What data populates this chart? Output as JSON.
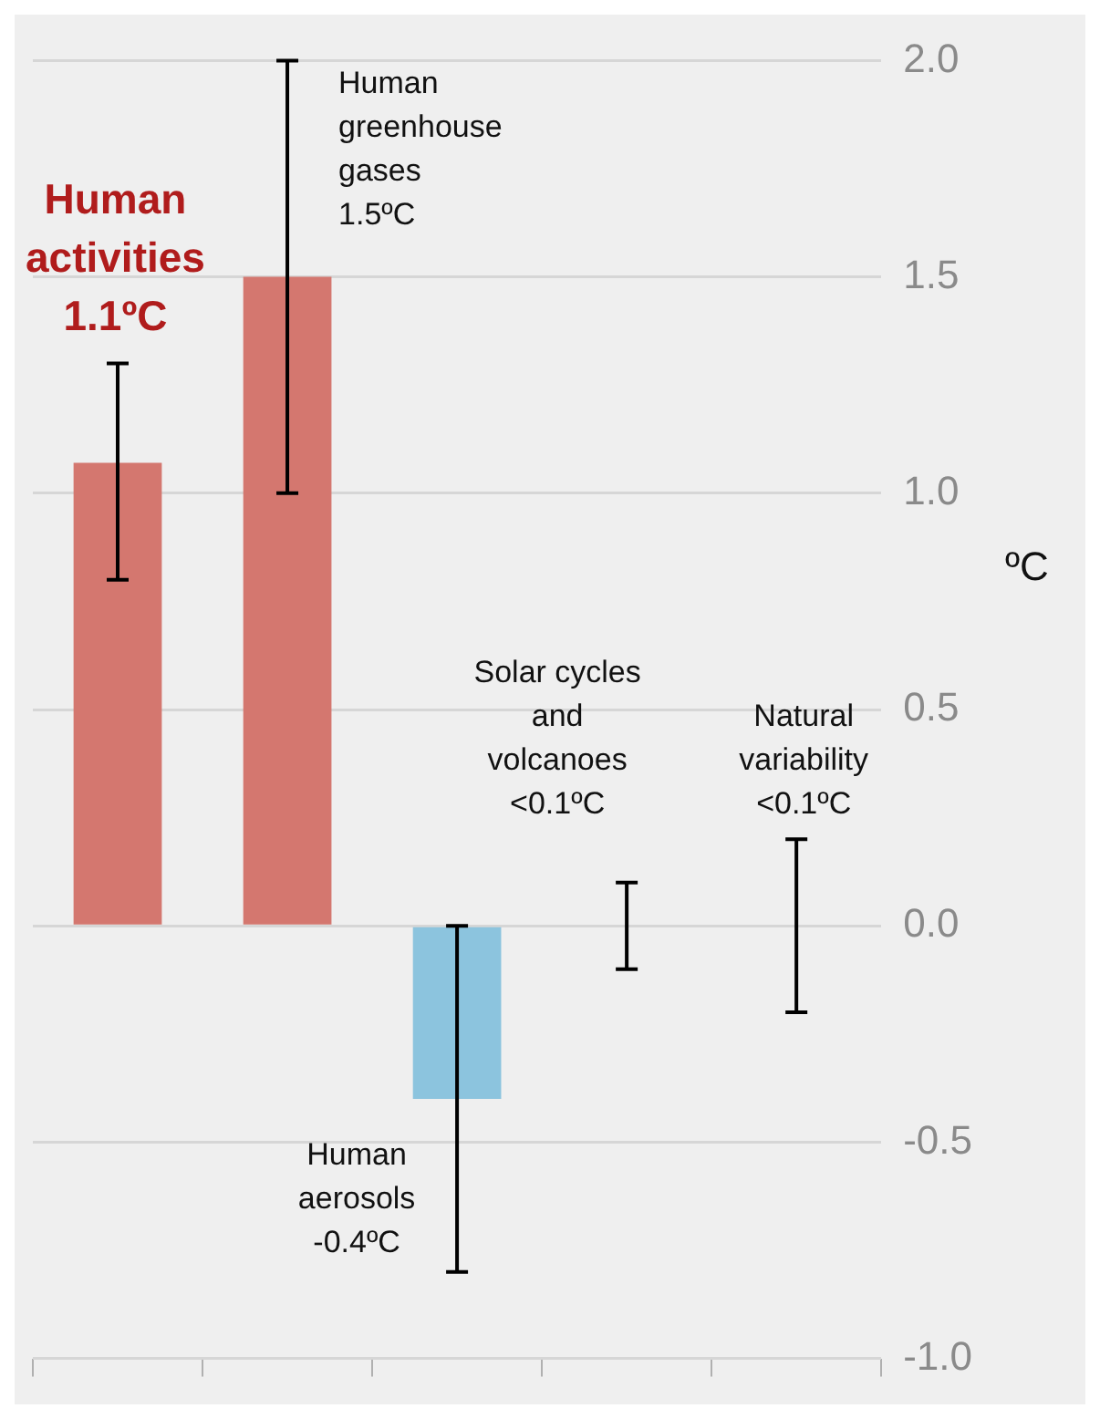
{
  "chart_data": {
    "type": "bar",
    "ylabel": "ºC",
    "categories": [
      null,
      null,
      null,
      null,
      null
    ],
    "values": [
      1.07,
      1.5,
      -0.4,
      0,
      0
    ],
    "colors": [
      "#d4776f",
      "#d4776f",
      "#8cc4de",
      "#aaaaaa",
      "#aaaaaa"
    ],
    "errors": [
      [
        0.8,
        1.3
      ],
      [
        1.0,
        2.0
      ],
      [
        -0.8,
        0.0
      ],
      [
        -0.1,
        0.1
      ],
      [
        -0.2,
        0.2
      ]
    ],
    "annotations": [
      "Human\nactivities\n1.1ºC",
      "Human\ngreenhouse\ngases\n1.5ºC",
      "Human\naerosols\n-0.4ºC",
      "Solar cycles\nand\nvolcanoes\n<0.1ºC",
      "Natural\nvariability\n<0.1ºC"
    ],
    "ylim": [
      -1,
      2
    ],
    "yticks": [
      {
        "value": -1,
        "label": "-1.0"
      },
      {
        "value": -0.5,
        "label": "-0.5"
      },
      {
        "value": 0,
        "label": "0.0"
      },
      {
        "value": 0.5,
        "label": "0.5"
      },
      {
        "value": 1,
        "label": "1.0"
      },
      {
        "value": 1.5,
        "label": "1.5"
      },
      {
        "value": 2,
        "label": "2.0"
      }
    ],
    "grid": "y",
    "tick_labels": "y"
  }
}
